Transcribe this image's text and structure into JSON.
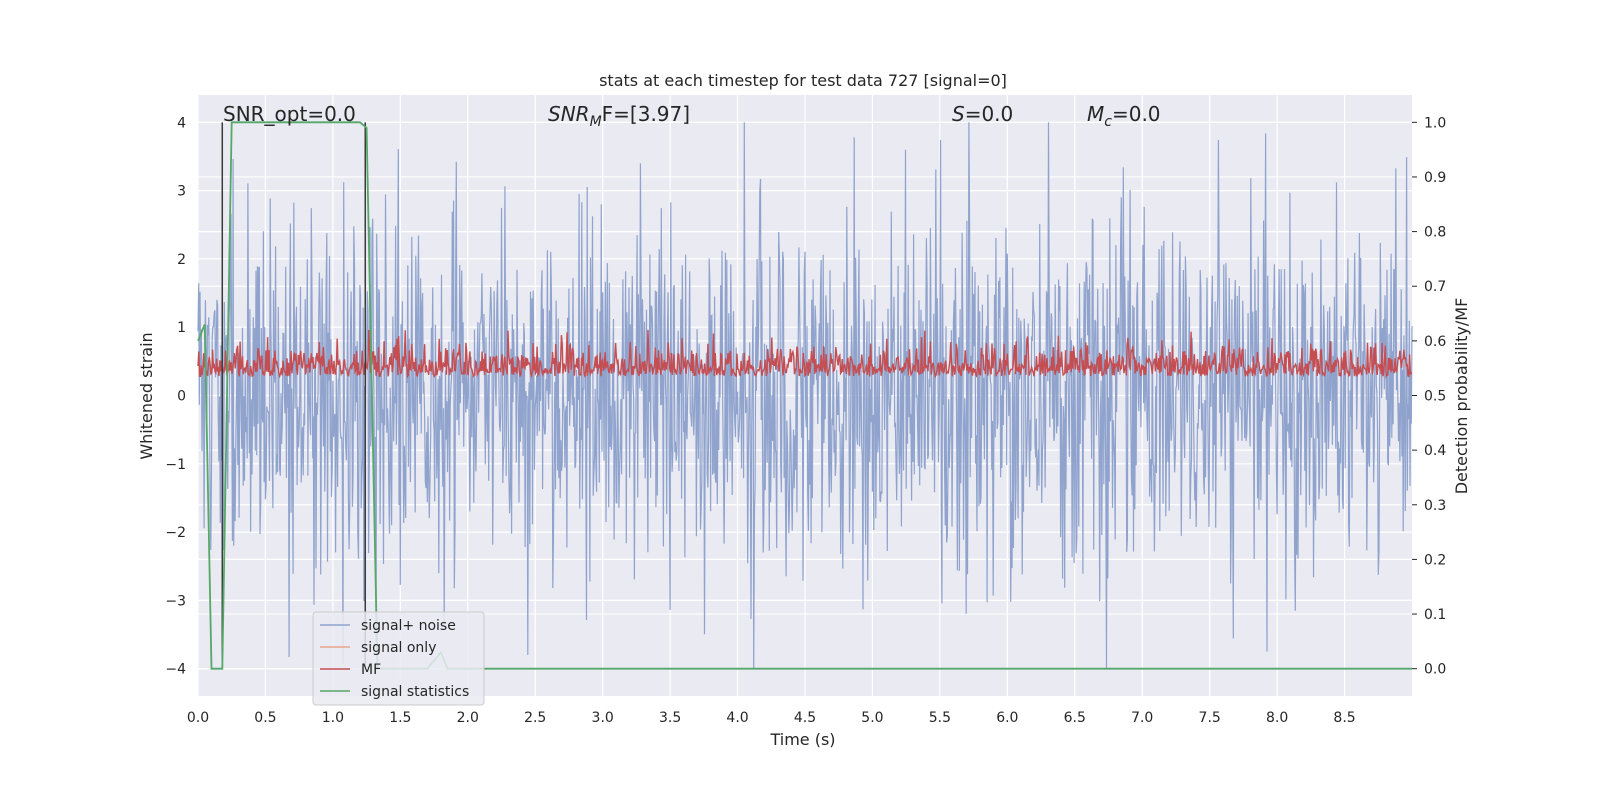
{
  "chart_data": {
    "type": "line",
    "title": "stats at each timestep for test data 727 [signal=0]",
    "xlabel": "Time (s)",
    "ylabel": "Whitened strain",
    "ylabel_right": "Detection probability/MF",
    "xlim": [
      0.0,
      9.0
    ],
    "ylim": [
      -4.4,
      4.4
    ],
    "ylim_right": [
      -0.05,
      1.05
    ],
    "x_ticks": [
      "0.0",
      "0.5",
      "1.0",
      "1.5",
      "2.0",
      "2.5",
      "3.0",
      "3.5",
      "4.0",
      "4.5",
      "5.0",
      "5.5",
      "6.0",
      "6.5",
      "7.0",
      "7.5",
      "8.0",
      "8.5"
    ],
    "y_ticks": [
      "−4",
      "−3",
      "−2",
      "−1",
      "0",
      "1",
      "2",
      "3",
      "4"
    ],
    "y_ticks_right": [
      "0.0",
      "0.1",
      "0.2",
      "0.3",
      "0.4",
      "0.5",
      "0.6",
      "0.7",
      "0.8",
      "0.9",
      "1.0"
    ],
    "grid": true,
    "legend_position": "lower-left",
    "annotations": {
      "snr_opt": "SNR_opt=0.0",
      "snr_mf_base": "SNR",
      "snr_mf_sub": "M",
      "snr_mf_rest": "F=[3.97]",
      "s_base": "S",
      "s_rest": "=0.0",
      "mc_base": "M",
      "mc_sub": "c",
      "mc_rest": "=0.0"
    },
    "vlines_x": [
      0.18,
      1.24
    ],
    "series": [
      {
        "name": "signal+ noise",
        "color": "#8fa3cd",
        "note": "whitened noise, approx range -4 to 4"
      },
      {
        "name": "signal only",
        "color": "#e8a48a",
        "values": []
      },
      {
        "name": "MF",
        "color": "#c44e52",
        "note": "matched filter output, approx 0.5 to 0.6 on right axis"
      },
      {
        "name": "signal statistics",
        "color": "#55a868",
        "x": [
          0.0,
          0.05,
          0.1,
          0.12,
          0.18,
          0.25,
          1.2,
          1.25,
          1.33,
          1.4,
          1.7,
          1.8,
          1.85,
          1.95,
          9.0
        ],
        "y": [
          0.6,
          0.63,
          0.0,
          0.0,
          0.0,
          1.0,
          1.0,
          0.99,
          0.0,
          0.0,
          0.0,
          0.03,
          0.0,
          0.0,
          0.0
        ]
      }
    ]
  }
}
